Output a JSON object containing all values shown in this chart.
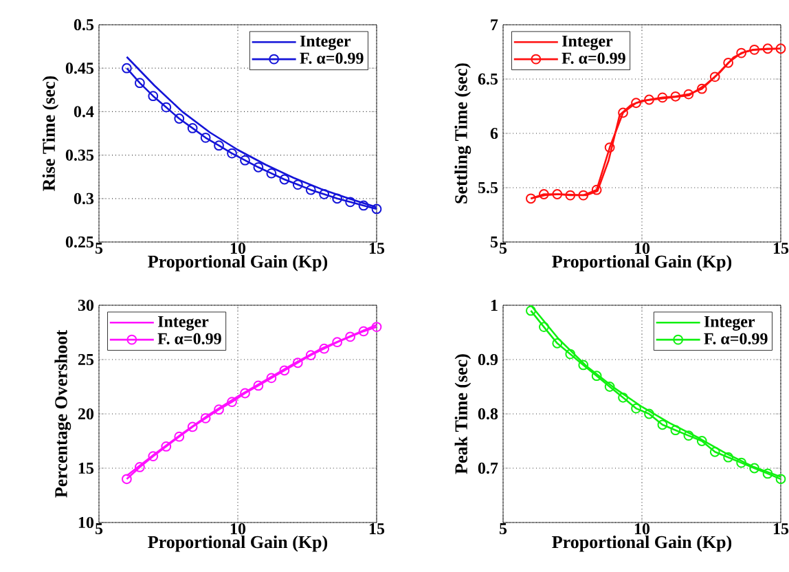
{
  "chart_data": [
    {
      "type": "line",
      "xlabel": "Proportional Gain (Kp)",
      "ylabel": "Rise Time (sec)",
      "xlim": [
        5,
        15
      ],
      "xticks": [
        5,
        10,
        15
      ],
      "ylim": [
        0.25,
        0.5
      ],
      "yticks": [
        0.25,
        0.3,
        0.35,
        0.4,
        0.45,
        0.5
      ],
      "grid": true,
      "legend": "top right",
      "series": [
        {
          "name": "Integer",
          "color": "#1414d8",
          "marker": "none",
          "x": [
            6,
            7,
            8,
            9,
            10,
            11,
            12,
            13,
            14,
            15
          ],
          "values": [
            0.463,
            0.43,
            0.4,
            0.376,
            0.356,
            0.339,
            0.324,
            0.311,
            0.3,
            0.29
          ]
        },
        {
          "name": "F. α=0.99",
          "color": "#1414d8",
          "marker": "circle",
          "x": [
            6,
            6.47,
            6.95,
            7.42,
            7.89,
            8.37,
            8.84,
            9.32,
            9.79,
            10.26,
            10.74,
            11.21,
            11.68,
            12.16,
            12.63,
            13.11,
            13.58,
            14.05,
            14.53,
            15
          ],
          "values": [
            0.45,
            0.433,
            0.418,
            0.405,
            0.392,
            0.381,
            0.37,
            0.361,
            0.352,
            0.344,
            0.336,
            0.329,
            0.322,
            0.316,
            0.31,
            0.305,
            0.3,
            0.296,
            0.292,
            0.288
          ]
        }
      ]
    },
    {
      "type": "line",
      "xlabel": "Proportional Gain (Kp)",
      "ylabel": "Settling Time (sec)",
      "xlim": [
        5,
        15
      ],
      "xticks": [
        5,
        10,
        15
      ],
      "ylim": [
        5,
        7
      ],
      "yticks": [
        5,
        5.5,
        6,
        6.5,
        7
      ],
      "grid": true,
      "legend": "top left",
      "series": [
        {
          "name": "Integer",
          "color": "#ff1010",
          "marker": "none",
          "x": [
            6,
            6.5,
            7,
            8,
            8.4,
            8.8,
            9.2,
            9.6,
            10,
            11,
            11.7,
            12.3,
            12.8,
            13.3,
            13.7,
            14,
            15
          ],
          "values": [
            5.4,
            5.43,
            5.44,
            5.43,
            5.47,
            5.75,
            6.17,
            6.26,
            6.3,
            6.33,
            6.35,
            6.45,
            6.56,
            6.7,
            6.75,
            6.77,
            6.78
          ]
        },
        {
          "name": "F. α=0.99",
          "color": "#ff1010",
          "marker": "circle",
          "x": [
            6,
            6.47,
            6.95,
            7.42,
            7.89,
            8.37,
            8.84,
            9.32,
            9.79,
            10.26,
            10.74,
            11.21,
            11.68,
            12.16,
            12.63,
            13.11,
            13.58,
            14.05,
            14.53,
            15
          ],
          "values": [
            5.4,
            5.44,
            5.44,
            5.43,
            5.43,
            5.48,
            5.87,
            6.19,
            6.28,
            6.31,
            6.33,
            6.34,
            6.36,
            6.41,
            6.52,
            6.65,
            6.74,
            6.77,
            6.78,
            6.78
          ]
        }
      ]
    },
    {
      "type": "line",
      "xlabel": "Proportional Gain (Kp)",
      "ylabel": "Percentage Overshoot",
      "xlim": [
        5,
        15
      ],
      "xticks": [
        5,
        10,
        15
      ],
      "ylim": [
        10,
        30
      ],
      "yticks": [
        10,
        15,
        20,
        25,
        30
      ],
      "grid": true,
      "legend": "top left",
      "series": [
        {
          "name": "Integer",
          "color": "#ff10ff",
          "marker": "none",
          "x": [
            6,
            7,
            8,
            9,
            10,
            11,
            12,
            13,
            14,
            15
          ],
          "values": [
            14.3,
            16.3,
            18.2,
            20.0,
            21.6,
            23.1,
            24.6,
            26.0,
            27.1,
            28.2
          ]
        },
        {
          "name": "F. α=0.99",
          "color": "#ff10ff",
          "marker": "circle",
          "x": [
            6,
            6.47,
            6.95,
            7.42,
            7.89,
            8.37,
            8.84,
            9.32,
            9.79,
            10.26,
            10.74,
            11.21,
            11.68,
            12.16,
            12.63,
            13.11,
            13.58,
            14.05,
            14.53,
            15
          ],
          "values": [
            14.0,
            15.1,
            16.1,
            17.0,
            17.9,
            18.8,
            19.6,
            20.4,
            21.1,
            21.9,
            22.6,
            23.3,
            24.0,
            24.7,
            25.4,
            26.0,
            26.6,
            27.1,
            27.6,
            28.0
          ]
        }
      ]
    },
    {
      "type": "line",
      "xlabel": "Proportional Gain (Kp)",
      "ylabel": "Peak Time (sec)",
      "xlim": [
        5,
        15
      ],
      "xticks": [
        5,
        10,
        15
      ],
      "ylim": [
        0.6,
        1
      ],
      "yticks": [
        {
          "value": 0.6,
          "label": null
        },
        0.7,
        0.8,
        0.9,
        1
      ],
      "grid": true,
      "legend": "top right",
      "series": [
        {
          "name": "Integer",
          "color": "#10f010",
          "marker": "none",
          "x": [
            6,
            7,
            8,
            9,
            10,
            11,
            12,
            13,
            14,
            15
          ],
          "values": [
            1.0,
            0.938,
            0.888,
            0.848,
            0.813,
            0.783,
            0.757,
            0.728,
            0.703,
            0.684
          ]
        },
        {
          "name": "F. α=0.99",
          "color": "#10f010",
          "marker": "circle",
          "x": [
            6,
            6.47,
            6.95,
            7.42,
            7.89,
            8.37,
            8.84,
            9.32,
            9.79,
            10.26,
            10.74,
            11.21,
            11.68,
            12.16,
            12.63,
            13.11,
            13.58,
            14.05,
            14.53,
            15
          ],
          "values": [
            0.99,
            0.96,
            0.93,
            0.91,
            0.89,
            0.87,
            0.85,
            0.83,
            0.81,
            0.8,
            0.78,
            0.77,
            0.76,
            0.75,
            0.73,
            0.72,
            0.71,
            0.7,
            0.69,
            0.68
          ]
        }
      ]
    }
  ]
}
